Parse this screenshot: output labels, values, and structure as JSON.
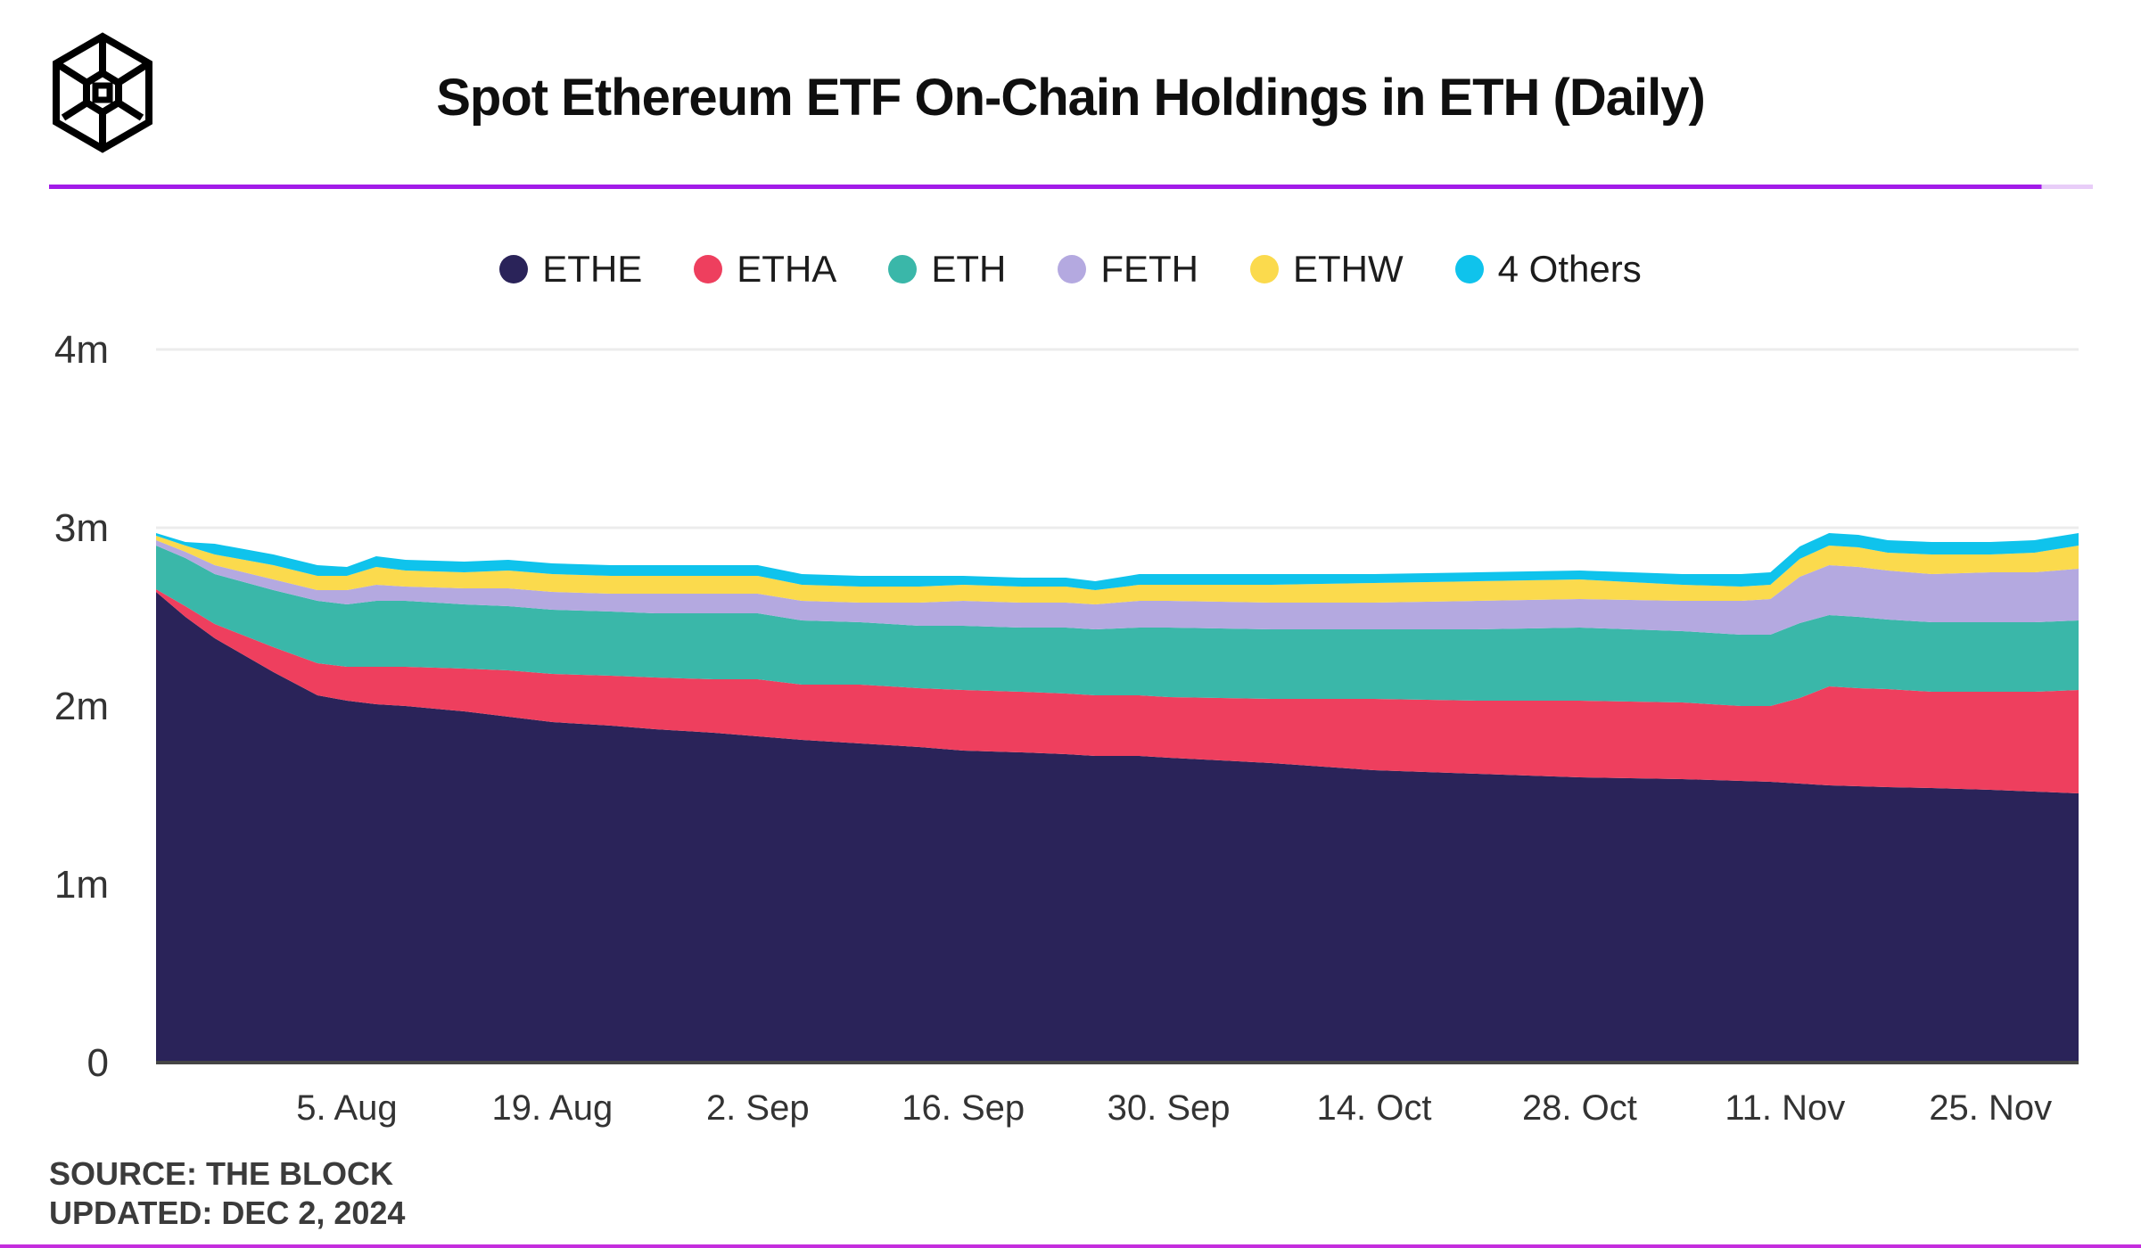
{
  "header": {
    "title": "Spot Ethereum ETF On-Chain Holdings in ETH (Daily)",
    "logo": "the-block-logo"
  },
  "footer": {
    "source": "SOURCE: THE BLOCK",
    "updated": "UPDATED: DEC 2, 2024"
  },
  "colors": {
    "accent_divider": "#a21be8",
    "bottom_rule": "#c42ddd",
    "axis_text": "#333333",
    "gridline": "#ececec",
    "baseline": "#454545",
    "title_text": "#0f0f0f",
    "footer_text": "#3b3b3b"
  },
  "chart_data": {
    "type": "area",
    "stacked": true,
    "title": "Spot Ethereum ETF On-Chain Holdings in ETH (Daily)",
    "value_unit": "millions of ETH",
    "ylim": [
      0,
      4
    ],
    "grid": "horizontal",
    "legend_position": "top-center",
    "x_days": [
      0,
      2,
      4,
      8,
      11,
      13,
      15,
      17,
      21,
      24,
      27,
      31,
      34,
      38,
      41,
      44,
      48,
      52,
      55,
      59,
      62,
      64,
      67,
      69,
      76,
      83,
      90,
      97,
      104,
      108,
      110,
      112,
      114,
      116,
      118,
      121,
      125,
      128,
      131
    ],
    "x_end_day": 131,
    "series": [
      {
        "name": "ETHE",
        "color": "#2a2359",
        "values": [
          2.64,
          2.5,
          2.38,
          2.19,
          2.06,
          2.03,
          2.01,
          2.0,
          1.97,
          1.94,
          1.91,
          1.89,
          1.87,
          1.85,
          1.83,
          1.81,
          1.79,
          1.77,
          1.75,
          1.74,
          1.73,
          1.72,
          1.72,
          1.71,
          1.68,
          1.64,
          1.62,
          1.6,
          1.59,
          1.58,
          1.575,
          1.565,
          1.555,
          1.55,
          1.545,
          1.54,
          1.53,
          1.52,
          1.51
        ]
      },
      {
        "name": "ETHA",
        "color": "#ee3f5e",
        "values": [
          0.015,
          0.06,
          0.08,
          0.14,
          0.18,
          0.19,
          0.21,
          0.22,
          0.24,
          0.26,
          0.27,
          0.28,
          0.29,
          0.3,
          0.32,
          0.31,
          0.33,
          0.33,
          0.34,
          0.34,
          0.34,
          0.34,
          0.34,
          0.34,
          0.36,
          0.4,
          0.41,
          0.43,
          0.43,
          0.42,
          0.425,
          0.48,
          0.555,
          0.55,
          0.55,
          0.54,
          0.55,
          0.56,
          0.58
        ]
      },
      {
        "name": "ETH",
        "color": "#3ab7a9",
        "values": [
          0.245,
          0.27,
          0.28,
          0.32,
          0.35,
          0.35,
          0.37,
          0.37,
          0.36,
          0.36,
          0.36,
          0.36,
          0.36,
          0.37,
          0.37,
          0.36,
          0.35,
          0.35,
          0.36,
          0.36,
          0.37,
          0.37,
          0.38,
          0.39,
          0.39,
          0.39,
          0.4,
          0.41,
          0.4,
          0.4,
          0.4,
          0.42,
          0.4,
          0.4,
          0.39,
          0.39,
          0.39,
          0.39,
          0.39
        ]
      },
      {
        "name": "FETH",
        "color": "#b4a9e0",
        "values": [
          0.03,
          0.035,
          0.05,
          0.06,
          0.06,
          0.08,
          0.09,
          0.08,
          0.09,
          0.1,
          0.1,
          0.1,
          0.11,
          0.11,
          0.11,
          0.11,
          0.11,
          0.13,
          0.14,
          0.14,
          0.14,
          0.14,
          0.15,
          0.15,
          0.15,
          0.15,
          0.16,
          0.16,
          0.17,
          0.19,
          0.2,
          0.26,
          0.28,
          0.28,
          0.275,
          0.27,
          0.28,
          0.28,
          0.29
        ]
      },
      {
        "name": "ETHW",
        "color": "#fbda4d",
        "values": [
          0.025,
          0.035,
          0.06,
          0.08,
          0.08,
          0.08,
          0.1,
          0.09,
          0.09,
          0.1,
          0.1,
          0.1,
          0.1,
          0.1,
          0.1,
          0.09,
          0.09,
          0.09,
          0.09,
          0.09,
          0.09,
          0.08,
          0.09,
          0.09,
          0.1,
          0.11,
          0.11,
          0.11,
          0.09,
          0.08,
          0.08,
          0.1,
          0.11,
          0.11,
          0.1,
          0.11,
          0.1,
          0.11,
          0.13
        ]
      },
      {
        "name": "4 Others",
        "color": "#0fc3ec",
        "values": [
          0.015,
          0.02,
          0.06,
          0.06,
          0.06,
          0.05,
          0.06,
          0.06,
          0.06,
          0.06,
          0.06,
          0.06,
          0.06,
          0.06,
          0.06,
          0.06,
          0.06,
          0.06,
          0.05,
          0.05,
          0.05,
          0.05,
          0.06,
          0.06,
          0.06,
          0.05,
          0.05,
          0.05,
          0.06,
          0.07,
          0.07,
          0.07,
          0.07,
          0.07,
          0.07,
          0.07,
          0.07,
          0.07,
          0.07
        ]
      }
    ],
    "x_ticks": [
      {
        "day": 13,
        "label": "5. Aug"
      },
      {
        "day": 27,
        "label": "19. Aug"
      },
      {
        "day": 41,
        "label": "2. Sep"
      },
      {
        "day": 55,
        "label": "16. Sep"
      },
      {
        "day": 69,
        "label": "30. Sep"
      },
      {
        "day": 83,
        "label": "14. Oct"
      },
      {
        "day": 97,
        "label": "28. Oct"
      },
      {
        "day": 111,
        "label": "11. Nov"
      },
      {
        "day": 125,
        "label": "25. Nov"
      }
    ],
    "y_ticks": [
      {
        "value": 0,
        "label": "0"
      },
      {
        "value": 1,
        "label": "1m"
      },
      {
        "value": 2,
        "label": "2m"
      },
      {
        "value": 3,
        "label": "3m"
      },
      {
        "value": 4,
        "label": "4m"
      }
    ]
  }
}
